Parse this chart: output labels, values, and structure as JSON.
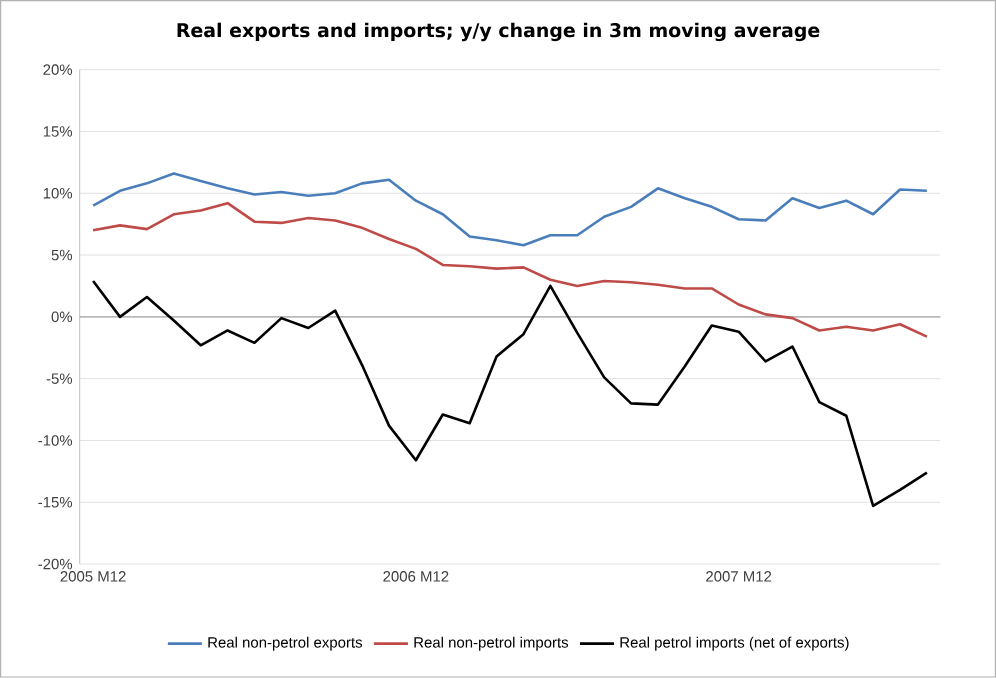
{
  "chart_data": {
    "type": "line",
    "title": "Real exports and imports; y/y change in 3m moving average",
    "categories": [
      "2005 M12",
      null,
      null,
      null,
      null,
      null,
      null,
      null,
      null,
      null,
      null,
      null,
      "2006 M12",
      null,
      null,
      null,
      null,
      null,
      null,
      null,
      null,
      null,
      null,
      null,
      "2007 M12",
      null,
      null,
      null,
      null,
      null,
      null,
      null
    ],
    "series": [
      {
        "name": "Real non-petrol exports",
        "color": "#4a7ebb",
        "values": [
          9.0,
          10.2,
          10.8,
          11.6,
          11.0,
          10.4,
          9.9,
          10.1,
          9.8,
          10.0,
          10.8,
          11.1,
          9.4,
          8.3,
          6.5,
          6.2,
          5.8,
          6.6,
          6.6,
          8.1,
          8.9,
          10.4,
          9.6,
          8.9,
          7.9,
          7.8,
          9.6,
          8.8,
          9.4,
          8.3,
          10.3,
          10.2
        ]
      },
      {
        "name": "Real non-petrol imports",
        "color": "#be4b48",
        "values": [
          7.0,
          7.4,
          7.1,
          8.3,
          8.6,
          9.2,
          7.7,
          7.6,
          8.0,
          7.8,
          7.2,
          6.3,
          5.5,
          4.2,
          4.1,
          3.9,
          4.0,
          3.0,
          2.5,
          2.9,
          2.8,
          2.6,
          2.3,
          2.3,
          1.0,
          0.2,
          -0.1,
          -1.1,
          -0.8,
          -1.1,
          -0.6,
          -1.6
        ]
      },
      {
        "name": "Real petrol imports (net of exports)",
        "color": "#000000",
        "values": [
          2.9,
          0.0,
          1.6,
          -0.3,
          -2.3,
          -1.1,
          -2.1,
          -0.1,
          -0.9,
          0.5,
          -3.9,
          -8.8,
          -11.6,
          -7.9,
          -8.6,
          -3.2,
          -1.4,
          2.5,
          -1.3,
          -4.9,
          -7.0,
          -7.1,
          -4.0,
          -0.7,
          -1.2,
          -3.6,
          -2.4,
          -6.9,
          -8.0,
          -15.3,
          -14.0,
          -12.6
        ]
      }
    ],
    "ylim": [
      -20,
      20
    ],
    "yticks": [
      {
        "value": -20,
        "label": "-20%"
      },
      {
        "value": -15,
        "label": "-15%"
      },
      {
        "value": -10,
        "label": "-10%"
      },
      {
        "value": -5,
        "label": "-5%"
      },
      {
        "value": 0,
        "label": "0%"
      },
      {
        "value": 5,
        "label": "5%"
      },
      {
        "value": 10,
        "label": "10%"
      },
      {
        "value": 15,
        "label": "15%"
      },
      {
        "value": 20,
        "label": "20%"
      }
    ],
    "grid": "y",
    "legend": "bottom",
    "marker": "none",
    "line_style": "solid"
  }
}
